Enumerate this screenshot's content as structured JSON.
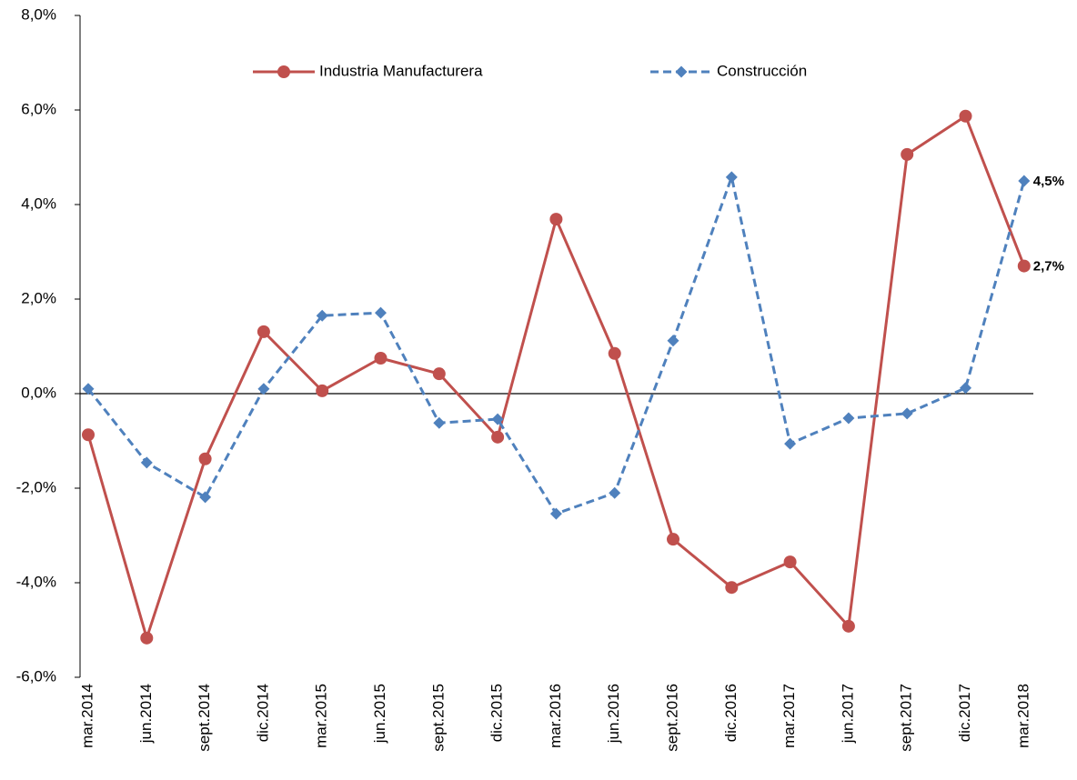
{
  "chart_data": {
    "type": "line",
    "categories": [
      "mar.2014",
      "jun.2014",
      "sept.2014",
      "dic.2014",
      "mar.2015",
      "jun.2015",
      "sept.2015",
      "dic.2015",
      "mar.2016",
      "jun.2016",
      "sept.2016",
      "dic.2016",
      "mar.2017",
      "jun.2017",
      "sept.2017",
      "dic.2017",
      "mar.2018"
    ],
    "series": [
      {
        "name": "Industria Manufacturera",
        "color": "#c0504d",
        "marker": "circle",
        "dash": false,
        "values": [
          -0.87,
          -5.17,
          -1.38,
          1.31,
          0.06,
          0.75,
          0.42,
          -0.92,
          3.69,
          0.85,
          -3.08,
          -4.1,
          -3.56,
          -4.92,
          5.06,
          5.87,
          2.7
        ],
        "value_labels": [
          null,
          null,
          null,
          null,
          null,
          null,
          null,
          null,
          null,
          null,
          null,
          null,
          null,
          null,
          null,
          null,
          "2,7%"
        ]
      },
      {
        "name": "Construcción",
        "color": "#4f81bd",
        "marker": "diamond",
        "dash": true,
        "values": [
          0.1,
          -1.46,
          -2.19,
          0.1,
          1.65,
          1.71,
          -0.62,
          -0.54,
          -2.54,
          -2.1,
          1.12,
          4.58,
          -1.06,
          -0.52,
          -0.42,
          0.12,
          4.5
        ],
        "value_labels": [
          null,
          null,
          null,
          null,
          null,
          null,
          null,
          null,
          null,
          null,
          null,
          null,
          null,
          null,
          null,
          null,
          "4,5%"
        ]
      }
    ],
    "ylim": [
      -6,
      8
    ],
    "yticks": [
      {
        "value": -6,
        "label": "-6,0%"
      },
      {
        "value": -4,
        "label": "-4,0%"
      },
      {
        "value": -2,
        "label": "-2,0%"
      },
      {
        "value": 0,
        "label": "0,0%"
      },
      {
        "value": 2,
        "label": "2,0%"
      },
      {
        "value": 4,
        "label": "4,0%"
      },
      {
        "value": 6,
        "label": "6,0%"
      },
      {
        "value": 8,
        "label": "8,0%"
      }
    ],
    "legend": "top"
  }
}
